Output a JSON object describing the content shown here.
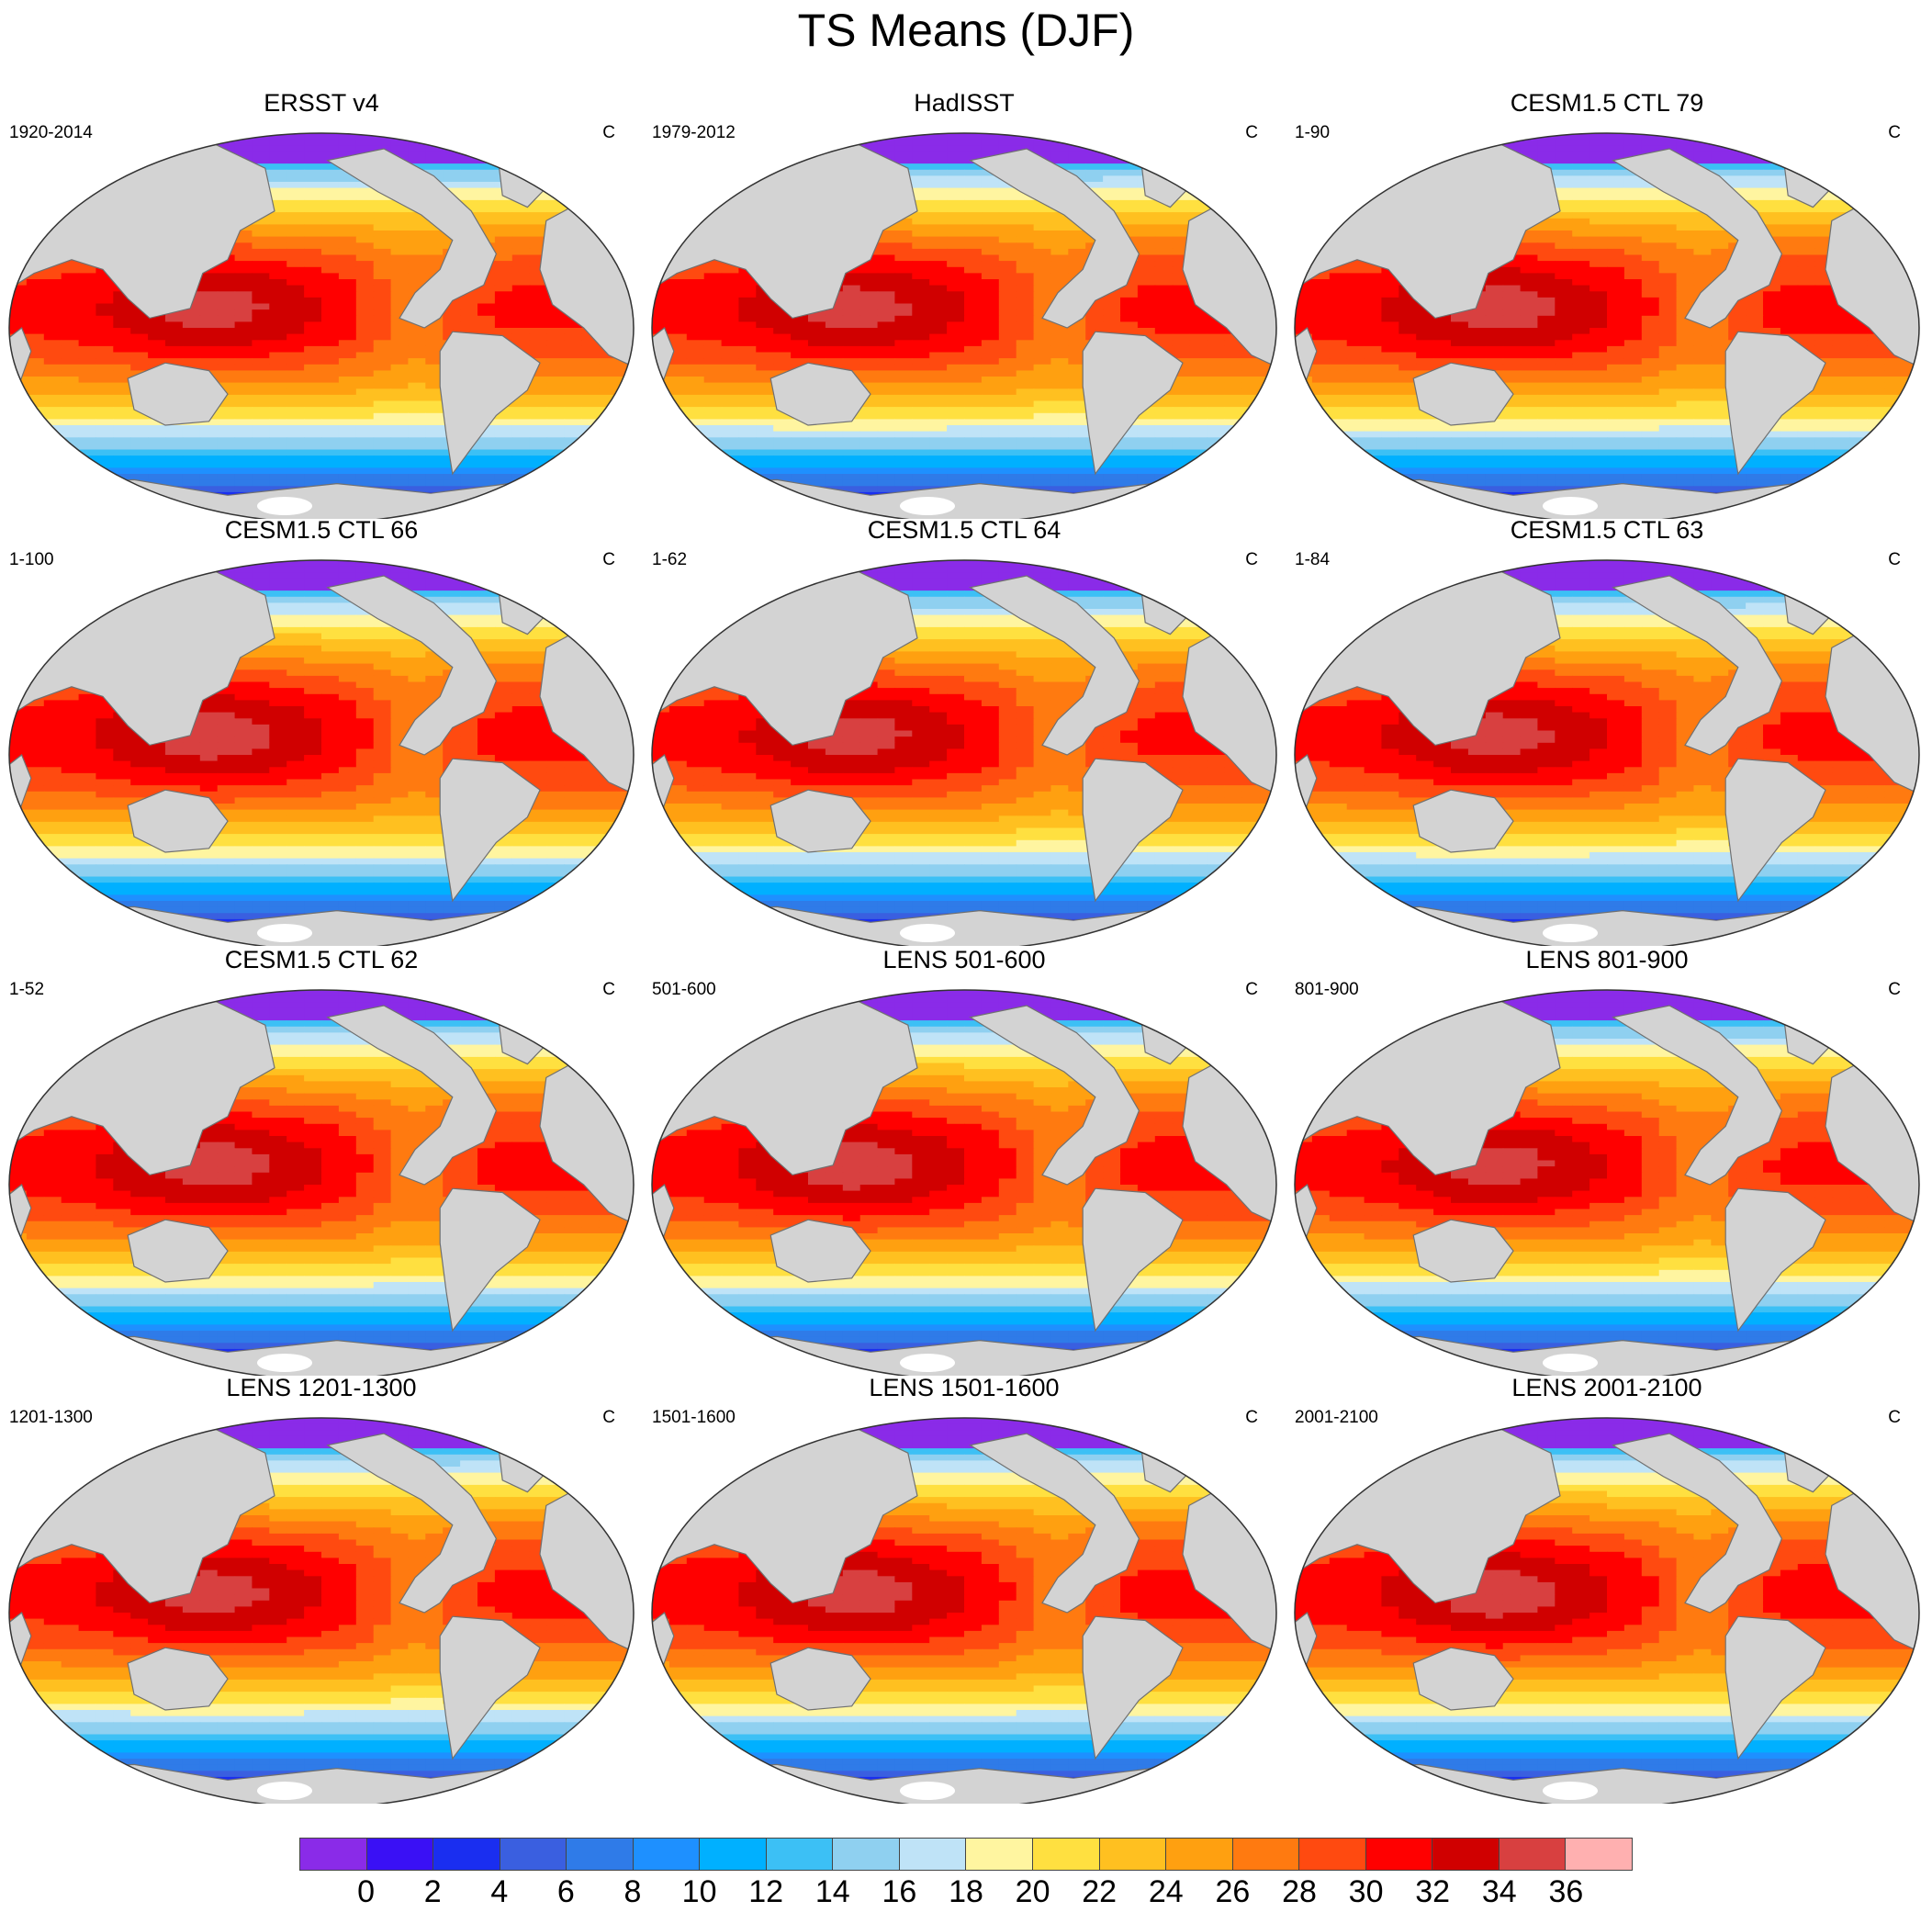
{
  "title": "TS Means (DJF)",
  "panels": [
    {
      "title": "ERSST v4",
      "left": "1920-2014",
      "right": "C"
    },
    {
      "title": "HadISST",
      "left": "1979-2012",
      "right": "C"
    },
    {
      "title": "CESM1.5 CTL 79",
      "left": "1-90",
      "right": "C"
    },
    {
      "title": "CESM1.5 CTL 66",
      "left": "1-100",
      "right": "C"
    },
    {
      "title": "CESM1.5 CTL 64",
      "left": "1-62",
      "right": "C"
    },
    {
      "title": "CESM1.5 CTL 63",
      "left": "1-84",
      "right": "C"
    },
    {
      "title": "CESM1.5 CTL 62",
      "left": "1-52",
      "right": "C"
    },
    {
      "title": "LENS 501-600",
      "left": "501-600",
      "right": "C"
    },
    {
      "title": "LENS 801-900",
      "left": "801-900",
      "right": "C"
    },
    {
      "title": "LENS 1201-1300",
      "left": "1201-1300",
      "right": "C"
    },
    {
      "title": "LENS 1501-1600",
      "left": "1501-1600",
      "right": "C"
    },
    {
      "title": "LENS 2001-2100",
      "left": "2001-2100",
      "right": "C"
    }
  ],
  "colorbar": {
    "labels": [
      "0",
      "2",
      "4",
      "6",
      "8",
      "10",
      "12",
      "14",
      "16",
      "18",
      "20",
      "22",
      "24",
      "26",
      "28",
      "30",
      "32",
      "34",
      "36"
    ],
    "colors": [
      "#8a2be8",
      "#3a10f5",
      "#1a2ef0",
      "#3a5fe0",
      "#2f7be8",
      "#1e90ff",
      "#00b0ff",
      "#3cc0f5",
      "#8fd0f0",
      "#bfe3f7",
      "#fff5a0",
      "#ffe040",
      "#ffc020",
      "#ffa010",
      "#ff7a10",
      "#ff4a10",
      "#ff0000",
      "#d00000",
      "#d84040",
      "#ffb0b0"
    ]
  },
  "map_style": {
    "land": "#d3d3d3",
    "coast": "#707070",
    "ice": "#ffffff"
  }
}
